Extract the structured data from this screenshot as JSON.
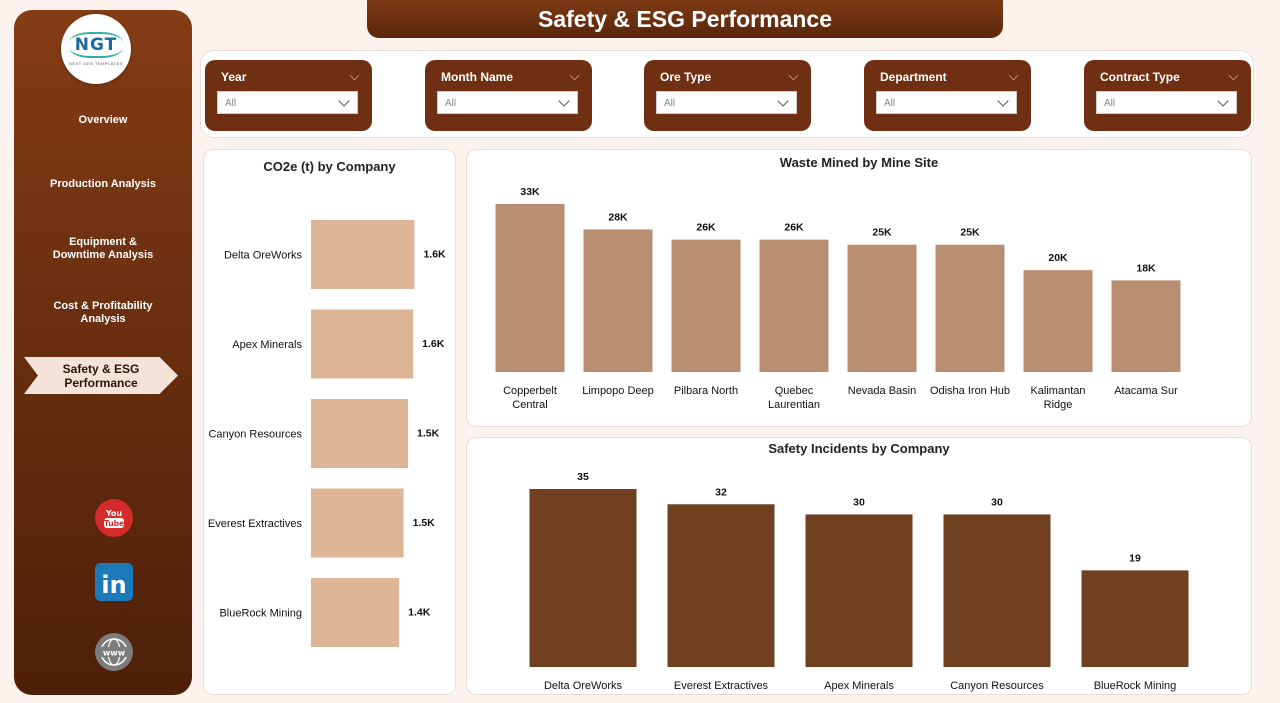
{
  "header": {
    "title": "Safety & ESG Performance"
  },
  "logo": {
    "letters": "NGT",
    "tagline": "NEXT GEN TEMPLATES"
  },
  "nav": {
    "items": [
      {
        "label": "Overview"
      },
      {
        "label": "Production Analysis"
      },
      {
        "label": "Equipment & Downtime Analysis"
      },
      {
        "label": "Cost & Profitability Analysis"
      },
      {
        "label": "Safety & ESG Performance"
      }
    ],
    "active_index": 4
  },
  "social": [
    {
      "name": "youtube",
      "text": "You Tube",
      "color": "#d42b2b"
    },
    {
      "name": "linkedin",
      "text": "in",
      "color": "#1e79b8"
    },
    {
      "name": "website",
      "text": "www",
      "color": "#8c8c8c"
    }
  ],
  "filters": [
    {
      "label": "Year",
      "value": "All"
    },
    {
      "label": "Month Name",
      "value": "All"
    },
    {
      "label": "Ore Type",
      "value": "All"
    },
    {
      "label": "Department",
      "value": "All"
    },
    {
      "label": "Contract Type",
      "value": "All"
    }
  ],
  "colors": {
    "co2_bar": "#deb596",
    "waste_bar": "#b98e70",
    "safety_bar": "#704020"
  },
  "chart_data": [
    {
      "id": "co2",
      "type": "bar",
      "orientation": "horizontal",
      "title": "CO2e (t) by Company",
      "categories": [
        "Delta OreWorks",
        "Apex Minerals",
        "Canyon Resources",
        "Everest Extractives",
        "BlueRock Mining"
      ],
      "values": [
        1620,
        1600,
        1520,
        1450,
        1380
      ],
      "data_labels": [
        "1.6K",
        "1.6K",
        "1.5K",
        "1.5K",
        "1.4K"
      ],
      "xlim": [
        0,
        1660
      ]
    },
    {
      "id": "waste",
      "type": "bar",
      "orientation": "vertical",
      "title": "Waste Mined by Mine Site",
      "categories": [
        [
          "Copperbelt",
          "Central"
        ],
        [
          "Limpopo Deep"
        ],
        [
          "Pilbara North"
        ],
        [
          "Quebec",
          "Laurentian"
        ],
        [
          "Nevada Basin"
        ],
        [
          "Odisha Iron Hub"
        ],
        [
          "Kalimantan",
          "Ridge"
        ],
        [
          "Atacama Sur"
        ]
      ],
      "values": [
        33000,
        28000,
        26000,
        26000,
        25000,
        25000,
        20000,
        18000
      ],
      "data_labels": [
        "33K",
        "28K",
        "26K",
        "26K",
        "25K",
        "25K",
        "20K",
        "18K"
      ],
      "ylim": [
        0,
        33000
      ]
    },
    {
      "id": "safety",
      "type": "bar",
      "orientation": "vertical",
      "title": "Safety Incidents by Company",
      "categories": [
        [
          "Delta OreWorks"
        ],
        [
          "Everest Extractives"
        ],
        [
          "Apex Minerals"
        ],
        [
          "Canyon Resources"
        ],
        [
          "BlueRock Mining"
        ]
      ],
      "values": [
        35,
        32,
        30,
        30,
        19
      ],
      "data_labels": [
        "35",
        "32",
        "30",
        "30",
        "19"
      ],
      "ylim": [
        0,
        35
      ]
    }
  ]
}
